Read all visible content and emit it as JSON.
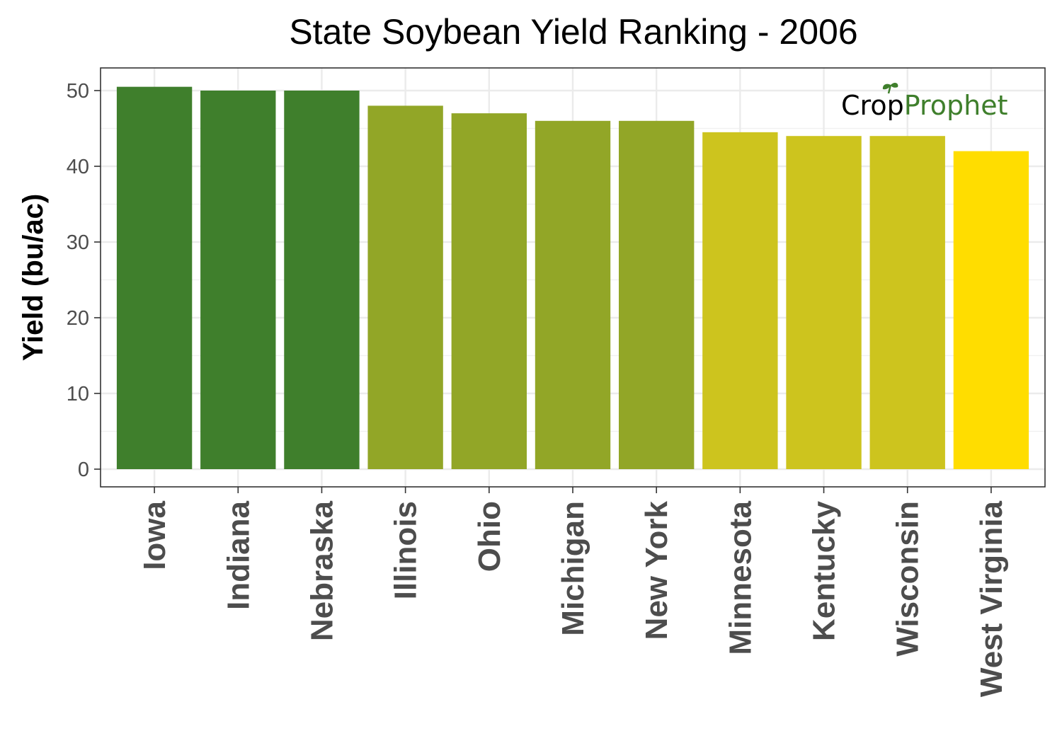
{
  "chart_data": {
    "type": "bar",
    "title": "State Soybean Yield Ranking - 2006",
    "xlabel": "",
    "ylabel": "Yield (bu/ac)",
    "categories": [
      "Iowa",
      "Indiana",
      "Nebraska",
      "Illinois",
      "Ohio",
      "Michigan",
      "New York",
      "Minnesota",
      "Kentucky",
      "Wisconsin",
      "West Virginia"
    ],
    "values": [
      50.5,
      50,
      50,
      48,
      47,
      46,
      46,
      44.5,
      44,
      44,
      42
    ],
    "colors": [
      "#3f7f2c",
      "#3f7f2c",
      "#3f7f2c",
      "#92a627",
      "#92a627",
      "#92a627",
      "#92a627",
      "#cdc41e",
      "#cdc41e",
      "#cdc41e",
      "#ffdd00"
    ],
    "ylim": [
      0,
      50
    ],
    "yticks": [
      0,
      10,
      20,
      30,
      40,
      50
    ],
    "grid": true,
    "legend": "none"
  },
  "watermark": {
    "part1": "Crop",
    "part2": "Prophet"
  }
}
